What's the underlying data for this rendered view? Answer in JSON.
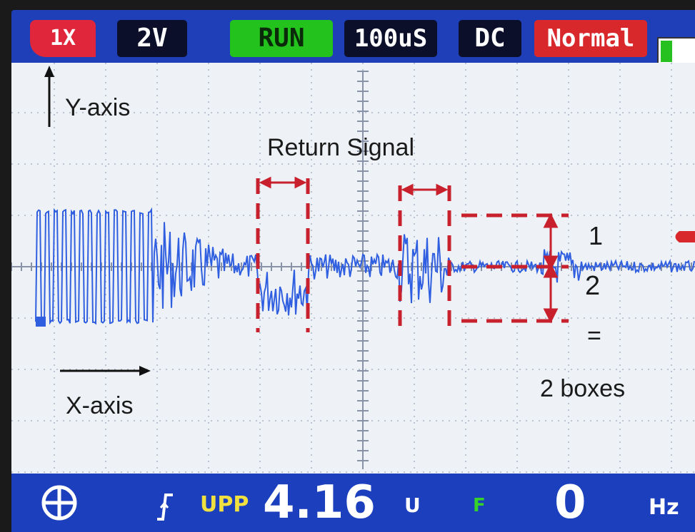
{
  "toolbar": {
    "probe": "1X",
    "volts_div": "2V",
    "run_state": "RUN",
    "time_div": "100uS",
    "coupling": "DC",
    "trigger_mode": "Normal",
    "battery_level": 0.25
  },
  "plot": {
    "y_axis_label": "Y-axis",
    "x_axis_label": "X-axis",
    "return_signal_label": "Return Signal",
    "annotation_1": "1",
    "annotation_2": "2",
    "annotation_eq": "=",
    "annotation_boxes": "2 boxes"
  },
  "statusbar": {
    "vpp_label": "UPP",
    "vpp_value": "4.16",
    "vpp_unit": "U",
    "freq_flag": "F",
    "freq_value": "0",
    "freq_unit": "Hz"
  },
  "colors": {
    "bar_blue": "#1f3fb8",
    "trace": "#2f5fe0",
    "annotation_red": "#c8202c",
    "run_green": "#24c21c"
  }
}
